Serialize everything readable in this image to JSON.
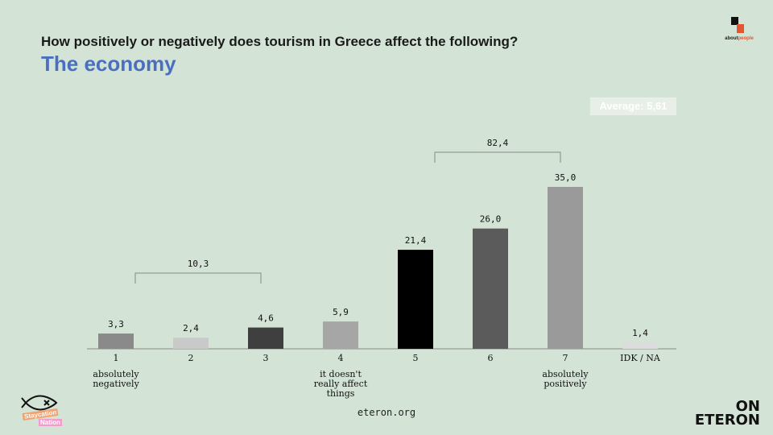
{
  "header": {
    "question": "How positively or negatively does tourism in Greece affect the following?",
    "topic": "The economy"
  },
  "average_badge": "Average: 5,61",
  "logos": {
    "top_right_prefix": "about",
    "top_right_accent": "people",
    "bottom_right_line1": "ON",
    "bottom_right_line2": "ETERON",
    "bottom_left_line1": "Staycation",
    "bottom_left_line2": "Nation"
  },
  "source": "eteron.org",
  "colors": {
    "background": "#d3e3d6",
    "title_accent": "#4a6fc0",
    "badge_bg": "#e8efe9",
    "logo_accent": "#e4572e"
  },
  "chart_data": {
    "type": "bar",
    "categories": [
      "1",
      "2",
      "3",
      "4",
      "5",
      "6",
      "7",
      "IDK / NA"
    ],
    "category_sublabels": [
      "absolutely negatively",
      "",
      "",
      "it doesn't really affect things",
      "",
      "",
      "absolutely positively",
      ""
    ],
    "values": [
      3.3,
      2.4,
      4.6,
      5.9,
      21.4,
      26.0,
      35.0,
      1.4
    ],
    "value_labels": [
      "3,3",
      "2,4",
      "4,6",
      "5,9",
      "21,4",
      "26,0",
      "35,0",
      "1,4"
    ],
    "bar_colors": [
      "#8a8a8a",
      "#c9c9c9",
      "#3f3f3f",
      "#a6a6a6",
      "#000000",
      "#5b5b5b",
      "#9a9a9a",
      "#dcdcdc"
    ],
    "groups": [
      {
        "label": "10,3",
        "from": 0,
        "to": 2
      },
      {
        "label": "82,4",
        "from": 4,
        "to": 6
      }
    ],
    "ylim": [
      0,
      35
    ]
  }
}
